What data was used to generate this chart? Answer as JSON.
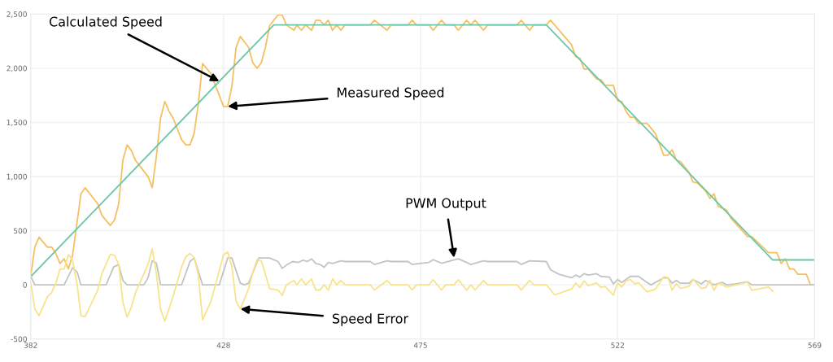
{
  "chart_data": {
    "type": "line",
    "xlim": [
      382,
      569
    ],
    "xticks": [
      382,
      428,
      475,
      522,
      569
    ],
    "ylim": [
      -500,
      2500
    ],
    "yticks": [
      {
        "value": -500,
        "label": "-500"
      },
      0,
      500,
      {
        "value": 1000,
        "label": "1,000"
      },
      {
        "value": 1500,
        "label": "1,500"
      },
      {
        "value": 2000,
        "label": "2,000"
      },
      {
        "value": 2500,
        "label": "2,500"
      }
    ],
    "grid": true,
    "legend": false,
    "marker": "none",
    "line_style": "solid",
    "series": [
      {
        "color": "#f5c062",
        "x": [
          382,
          383,
          384,
          386,
          387,
          388,
          389,
          390,
          391,
          392,
          394,
          395,
          398,
          399,
          401,
          402,
          403,
          404,
          405,
          406,
          407,
          410,
          411,
          412,
          413,
          414,
          415,
          416,
          418,
          419,
          420,
          421,
          422,
          423,
          425,
          428,
          429,
          430,
          431,
          432,
          434,
          435,
          436,
          437,
          438,
          439,
          441,
          442,
          443,
          444.8,
          445.5,
          446.6,
          447.6,
          449,
          450,
          451,
          452,
          453,
          454,
          455,
          456,
          457,
          463,
          464,
          467,
          468,
          472,
          473,
          474,
          477,
          478,
          480,
          481,
          483,
          484,
          486,
          487,
          488,
          490,
          491,
          498,
          499,
          501,
          502,
          505,
          506,
          511,
          512,
          513,
          514,
          515,
          517,
          518,
          519,
          521,
          522,
          523,
          524,
          525,
          526,
          527,
          529,
          531,
          533,
          534,
          535,
          536,
          537,
          539,
          540,
          541,
          543,
          544,
          545,
          546,
          548,
          549,
          553,
          554,
          558,
          560,
          561,
          562,
          563,
          564,
          565,
          567,
          568,
          569
        ],
        "values": [
          77,
          350,
          440,
          348,
          350,
          290,
          197,
          240,
          147,
          272,
          841,
          896,
          748,
          640,
          548,
          598,
          748,
          1154,
          1292,
          1241,
          1149,
          999,
          898,
          1191,
          1542,
          1692,
          1604,
          1537,
          1341,
          1292,
          1292,
          1399,
          1675,
          2043,
          1950,
          1647,
          1647,
          1835,
          2193,
          2293,
          2193,
          2050,
          2000,
          2050,
          2193,
          2393,
          2493,
          2493,
          2400,
          2350,
          2400,
          2350,
          2400,
          2350,
          2443,
          2443,
          2400,
          2443,
          2350,
          2400,
          2350,
          2400,
          2400,
          2443,
          2350,
          2400,
          2400,
          2443,
          2400,
          2400,
          2350,
          2443,
          2400,
          2400,
          2350,
          2443,
          2400,
          2443,
          2350,
          2400,
          2400,
          2443,
          2350,
          2400,
          2400,
          2443,
          2218,
          2105,
          2093,
          1992,
          1992,
          1900,
          1895,
          1842,
          1842,
          1700,
          1692,
          1604,
          1547,
          1547,
          1491,
          1491,
          1399,
          1196,
          1196,
          1247,
          1154,
          1136,
          1041,
          949,
          941,
          866,
          798,
          841,
          723,
          691,
          616,
          445,
          445,
          297,
          297,
          197,
          240,
          147,
          147,
          98,
          98,
          0,
          0
        ]
      },
      {
        "color": "#6cc7a8",
        "x": [
          382,
          440,
          505,
          559,
          569
        ],
        "values": [
          75,
          2400,
          2400,
          230,
          230
        ]
      },
      {
        "color": "#c4c4c4",
        "x": [
          382,
          383,
          390,
          392,
          393.1,
          394,
          400,
          401.8,
          403,
          404,
          405,
          409,
          410,
          411,
          412,
          413,
          418,
          420,
          421,
          423,
          427,
          429,
          430,
          432,
          433,
          434,
          436.4,
          439,
          441,
          442,
          443.2,
          444.5,
          445.8,
          447,
          448,
          449,
          450,
          451,
          452,
          453,
          454,
          456,
          457,
          463,
          464,
          467,
          468,
          472,
          473,
          477,
          478,
          480,
          484,
          486,
          487,
          490,
          491,
          498,
          499,
          501,
          505,
          506,
          508,
          511,
          512,
          513,
          514,
          515,
          517,
          518,
          520,
          521,
          522,
          523,
          525,
          527,
          529,
          530,
          533,
          534,
          535,
          536,
          537,
          539,
          540,
          542,
          543,
          545,
          547,
          548,
          550,
          553,
          554,
          569
        ],
        "values": [
          80,
          0,
          0,
          158,
          117,
          0,
          0,
          165,
          186,
          40,
          0,
          0,
          65,
          222,
          200,
          0,
          0,
          215,
          248,
          0,
          0,
          248,
          248,
          15,
          0,
          15,
          248,
          248,
          215,
          152,
          188,
          215,
          207,
          228,
          215,
          240,
          197,
          188,
          162,
          207,
          197,
          222,
          215,
          215,
          188,
          222,
          215,
          215,
          188,
          207,
          232,
          200,
          240,
          207,
          188,
          222,
          215,
          215,
          188,
          222,
          215,
          140,
          98,
          65,
          90,
          72,
          103,
          90,
          103,
          78,
          72,
          8,
          48,
          22,
          78,
          78,
          22,
          0,
          65,
          65,
          15,
          40,
          15,
          15,
          48,
          8,
          40,
          0,
          22,
          0,
          8,
          28,
          0,
          0
        ]
      },
      {
        "color": "#f8e38c",
        "x": [
          382,
          383,
          384,
          386,
          387,
          388,
          389,
          390,
          391,
          392,
          393.1,
          394,
          395,
          398,
          399,
          401,
          402,
          403,
          404,
          405,
          406,
          407,
          410,
          411,
          412,
          413,
          414,
          415,
          416,
          418,
          419,
          420,
          421,
          422,
          423,
          425,
          428,
          429,
          430,
          431,
          432,
          434,
          435,
          436,
          437,
          439,
          441,
          442,
          443,
          444.8,
          445.5,
          446.6,
          447.6,
          449,
          450,
          451,
          452,
          453,
          454,
          455,
          456,
          457,
          463,
          464,
          467,
          468,
          472,
          473,
          474,
          477,
          478,
          480,
          481,
          483,
          484,
          486,
          487,
          488,
          490,
          491,
          498,
          499,
          501,
          502,
          505,
          507,
          511,
          512,
          513,
          514,
          515,
          517,
          518,
          519,
          521,
          522,
          523,
          524,
          525,
          526,
          527,
          529,
          531,
          533,
          534,
          535,
          536,
          537,
          539,
          540,
          542,
          543,
          544,
          545,
          546,
          548,
          553,
          554,
          558,
          559
        ],
        "values": [
          27,
          -223,
          -285,
          -110,
          -73,
          15,
          147,
          147,
          278,
          228,
          0,
          -285,
          -293,
          -48,
          102,
          282,
          272,
          190,
          -160,
          -298,
          -210,
          -73,
          190,
          333,
          102,
          -228,
          -335,
          -223,
          -103,
          165,
          258,
          290,
          252,
          90,
          -323,
          -153,
          278,
          303,
          165,
          -153,
          -223,
          -35,
          115,
          233,
          222,
          -35,
          -48,
          -98,
          0,
          40,
          0,
          55,
          0,
          55,
          -48,
          -48,
          0,
          -50,
          55,
          0,
          40,
          0,
          0,
          -48,
          40,
          0,
          0,
          -48,
          0,
          0,
          48,
          -48,
          0,
          0,
          48,
          -50,
          0,
          -48,
          40,
          0,
          0,
          -48,
          40,
          0,
          0,
          -93,
          -40,
          18,
          -25,
          35,
          -8,
          18,
          -25,
          -15,
          -95,
          18,
          -20,
          35,
          50,
          10,
          18,
          -65,
          -40,
          75,
          68,
          -50,
          10,
          -33,
          -15,
          50,
          -33,
          -25,
          43,
          -50,
          18,
          -20,
          25,
          -50,
          -20,
          -58
        ]
      }
    ],
    "annotations": [
      {
        "text": "Calculated Speed",
        "x": 427,
        "y": 1879
      },
      {
        "text": "Measured Speed",
        "x": 429,
        "y": 1647
      },
      {
        "text": "PWM Output",
        "x": 483,
        "y": 250
      },
      {
        "text": "Speed Error",
        "x": 432,
        "y": -223
      }
    ]
  }
}
